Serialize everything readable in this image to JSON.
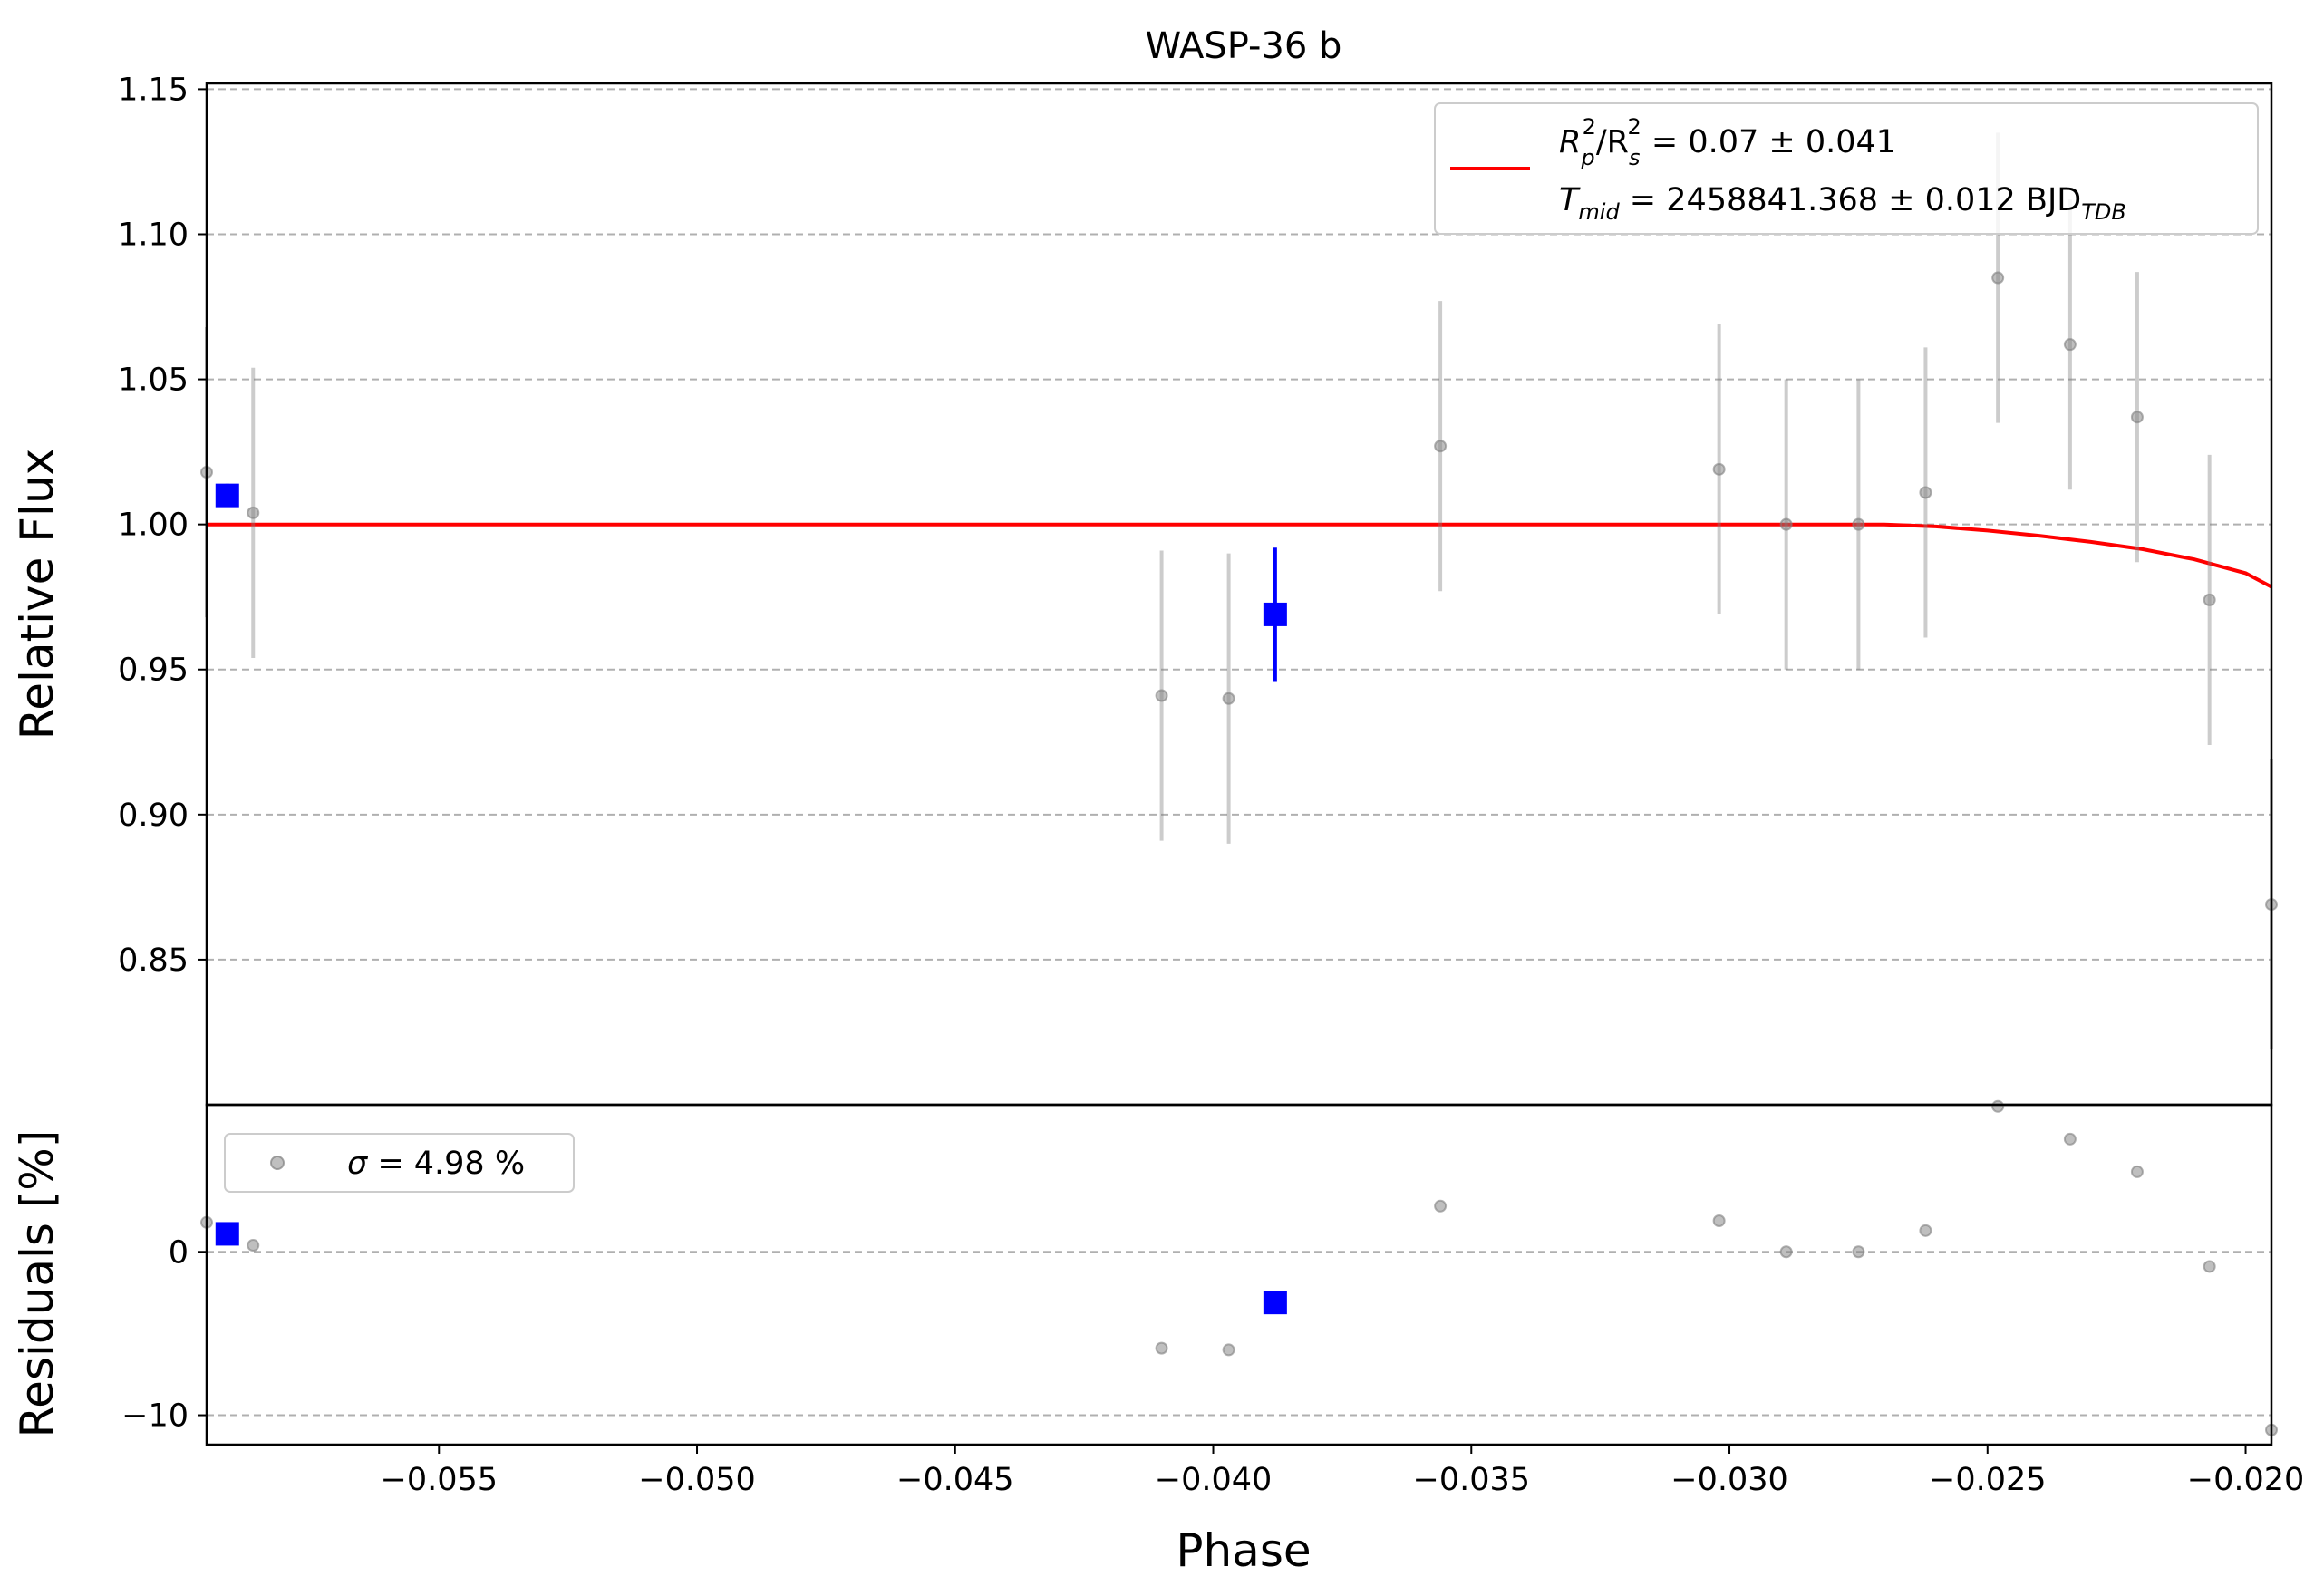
{
  "chart_data": {
    "type": "scatter",
    "title": "WASP-36 b",
    "xlabel": "Phase",
    "xlim": [
      -0.0595,
      -0.0195
    ],
    "xticks": [
      {
        "value": -0.055,
        "label": "−0.055"
      },
      {
        "value": -0.05,
        "label": "−0.050"
      },
      {
        "value": -0.045,
        "label": "−0.045"
      },
      {
        "value": -0.04,
        "label": "−0.040"
      },
      {
        "value": -0.035,
        "label": "−0.035"
      },
      {
        "value": -0.03,
        "label": "−0.030"
      },
      {
        "value": -0.025,
        "label": "−0.025"
      },
      {
        "value": -0.02,
        "label": "−0.020"
      }
    ],
    "top_panel": {
      "ylabel": "Relative Flux",
      "ylim": [
        0.8,
        1.152
      ],
      "yticks": [
        {
          "value": 0.85,
          "label": "0.85"
        },
        {
          "value": 0.9,
          "label": "0.90"
        },
        {
          "value": 0.95,
          "label": "0.95"
        },
        {
          "value": 1.0,
          "label": "1.00"
        },
        {
          "value": 1.05,
          "label": "1.05"
        },
        {
          "value": 1.1,
          "label": "1.10"
        },
        {
          "value": 1.15,
          "label": "1.15"
        }
      ],
      "grid": true,
      "data_points": {
        "color": "#808080",
        "x": [
          -0.0595,
          -0.0586,
          -0.041,
          -0.0397,
          -0.0356,
          -0.0302,
          -0.0289,
          -0.0275,
          -0.0262,
          -0.0248,
          -0.0234,
          -0.0221,
          -0.0207,
          -0.0195
        ],
        "y": [
          1.018,
          1.004,
          0.941,
          0.94,
          1.027,
          1.019,
          1.0,
          1.0,
          1.011,
          1.085,
          1.062,
          1.037,
          0.974,
          0.869
        ],
        "err": [
          0.05,
          0.05,
          0.05,
          0.05,
          0.05,
          0.05,
          0.05,
          0.05,
          0.05,
          0.05,
          0.05,
          0.05,
          0.05,
          0.05
        ]
      },
      "binned_points": {
        "color": "#0000ff",
        "x": [
          -0.0591,
          -0.0388
        ],
        "y": [
          1.01,
          0.969
        ],
        "err": [
          0.004,
          0.023
        ]
      },
      "model": {
        "color": "#ff0000",
        "x": [
          -0.0595,
          -0.027,
          -0.026,
          -0.025,
          -0.024,
          -0.023,
          -0.022,
          -0.021,
          -0.02,
          -0.0195
        ],
        "y": [
          1.0,
          1.0,
          0.9993,
          0.9979,
          0.9961,
          0.994,
          0.9915,
          0.988,
          0.9832,
          0.9785
        ]
      },
      "legend": {
        "position": "top-right",
        "line1_prefix": "R",
        "line1_sub_a": "p",
        "line1_sup_a": "2",
        "line1_slash": "/R",
        "line1_sub_b": "s",
        "line1_sup_b": "2",
        "line1_value": " = 0.07 ± 0.041",
        "line2_prefix": "T",
        "line2_sub": "mid",
        "line2_value": " = 2458841.368 ± 0.012 BJD",
        "line2_unit_sub": "TDB"
      }
    },
    "bottom_panel": {
      "ylabel": "Residuals [%]",
      "ylim": [
        -11.8,
        9.0
      ],
      "yticks": [
        {
          "value": -10,
          "label": "−10"
        },
        {
          "value": 0,
          "label": "0"
        }
      ],
      "grid": true,
      "residuals": {
        "color": "#808080",
        "x": [
          -0.0595,
          -0.0586,
          -0.041,
          -0.0397,
          -0.0356,
          -0.0302,
          -0.0289,
          -0.0275,
          -0.0262,
          -0.0248,
          -0.0234,
          -0.0221,
          -0.0207,
          -0.0195
        ],
        "y": [
          1.8,
          0.4,
          -5.9,
          -6.0,
          2.8,
          1.9,
          0.0,
          0.0,
          1.3,
          8.9,
          6.9,
          4.9,
          -0.9,
          -10.9
        ]
      },
      "binned_residuals": {
        "color": "#0000ff",
        "x": [
          -0.0591,
          -0.0388
        ],
        "y": [
          1.1,
          -3.1
        ]
      },
      "legend": {
        "position": "top-left",
        "symbol": "σ",
        "text": " = 4.98 %"
      }
    }
  }
}
